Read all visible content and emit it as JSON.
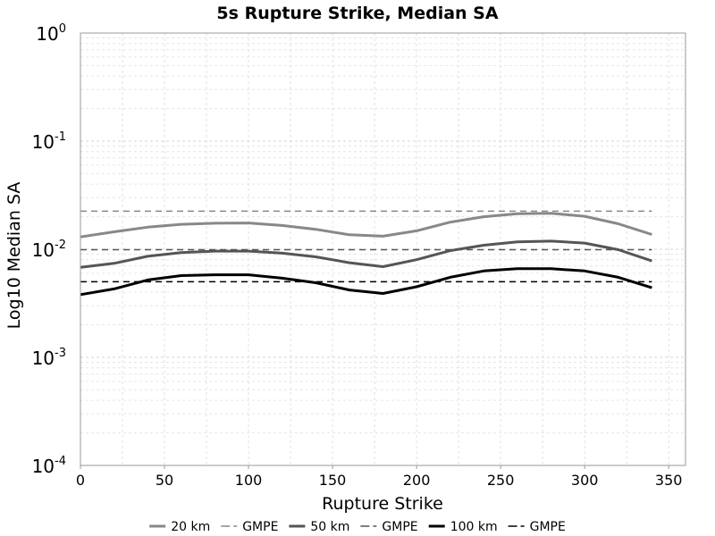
{
  "chart_data": {
    "type": "line",
    "title": "5s Rupture Strike, Median SA",
    "xlabel": "Rupture Strike",
    "ylabel": "Log10 Median SA",
    "xlim": [
      0,
      360
    ],
    "ylim": [
      0.0001,
      1
    ],
    "yscale": "log",
    "grid": true,
    "legend_position": "bottom",
    "x_ticks": [
      "0",
      "50",
      "100",
      "150",
      "200",
      "250",
      "300",
      "350"
    ],
    "y_ticks": [
      {
        "base": "10",
        "exp": "-4",
        "value": 0.0001
      },
      {
        "base": "10",
        "exp": "-3",
        "value": 0.001
      },
      {
        "base": "10",
        "exp": "-2",
        "value": 0.01
      },
      {
        "base": "10",
        "exp": "-1",
        "value": 0.1
      },
      {
        "base": "10",
        "exp": "0",
        "value": 1
      }
    ],
    "x": [
      0,
      20,
      40,
      60,
      80,
      100,
      120,
      140,
      160,
      180,
      200,
      220,
      240,
      260,
      280,
      300,
      320,
      340
    ],
    "series": [
      {
        "name": "20 km",
        "color": "#888888",
        "width": 3,
        "dash": "",
        "values": [
          0.013,
          0.0145,
          0.016,
          0.017,
          0.0174,
          0.0175,
          0.0166,
          0.0153,
          0.0136,
          0.0132,
          0.0148,
          0.0178,
          0.02,
          0.0213,
          0.0215,
          0.0202,
          0.0172,
          0.0137
        ]
      },
      {
        "name": "GMPE",
        "color": "#888888",
        "width": 1.5,
        "dash": "7,5",
        "values": [
          0.0225,
          0.0225,
          0.0225,
          0.0225,
          0.0225,
          0.0225,
          0.0225,
          0.0225,
          0.0225,
          0.0225,
          0.0225,
          0.0225,
          0.0225,
          0.0225,
          0.0225,
          0.0225,
          0.0225,
          0.0225
        ]
      },
      {
        "name": "50 km",
        "color": "#555555",
        "width": 3,
        "dash": "",
        "values": [
          0.0068,
          0.0074,
          0.0086,
          0.0093,
          0.0096,
          0.0096,
          0.0092,
          0.0085,
          0.0075,
          0.0069,
          0.008,
          0.0097,
          0.0109,
          0.0117,
          0.0119,
          0.0114,
          0.0099,
          0.0078
        ]
      },
      {
        "name": "GMPE",
        "color": "#555555",
        "width": 1.5,
        "dash": "7,5",
        "values": [
          0.0099,
          0.0099,
          0.0099,
          0.0099,
          0.0099,
          0.0099,
          0.0099,
          0.0099,
          0.0099,
          0.0099,
          0.0099,
          0.0099,
          0.0099,
          0.0099,
          0.0099,
          0.0099,
          0.0099,
          0.0099
        ]
      },
      {
        "name": "100 km",
        "color": "#000000",
        "width": 3,
        "dash": "",
        "values": [
          0.0038,
          0.0043,
          0.0052,
          0.0057,
          0.0058,
          0.0058,
          0.0054,
          0.0049,
          0.0042,
          0.0039,
          0.0045,
          0.0055,
          0.0063,
          0.0066,
          0.0066,
          0.0063,
          0.0055,
          0.0044
        ]
      },
      {
        "name": "GMPE",
        "color": "#000000",
        "width": 1.5,
        "dash": "7,5",
        "values": [
          0.005,
          0.005,
          0.005,
          0.005,
          0.005,
          0.005,
          0.005,
          0.005,
          0.005,
          0.005,
          0.005,
          0.005,
          0.005,
          0.005,
          0.005,
          0.005,
          0.005,
          0.005
        ]
      }
    ]
  }
}
